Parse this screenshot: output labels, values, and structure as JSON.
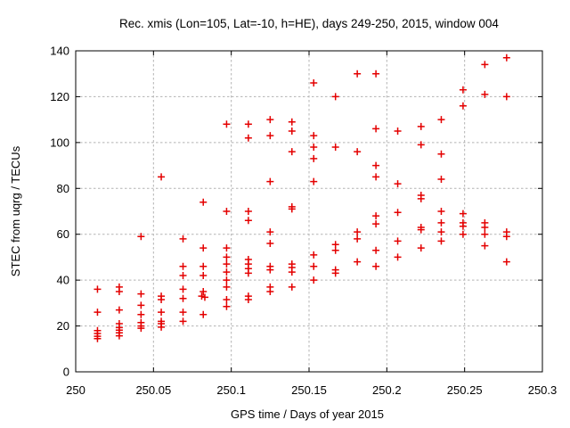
{
  "window": {
    "background": "#ffffff"
  },
  "chart_data": {
    "type": "scatter",
    "title": "Rec. xmis (Lon=105, Lat=-10, h=HE), days 249-250, 2015, window 004",
    "xlabel": "GPS time / Days of year 2015",
    "ylabel": "STEC from uqrg / TECUs",
    "xlim": [
      250,
      250.3
    ],
    "ylim": [
      0,
      140
    ],
    "xticks": {
      "values": [
        250,
        250.05,
        250.1,
        250.15,
        250.2,
        250.25,
        250.3
      ],
      "labels": [
        "250",
        "250.05",
        "250.1",
        "250.15",
        "250.2",
        "250.25",
        "250.3"
      ]
    },
    "yticks": {
      "values": [
        0,
        20,
        40,
        60,
        80,
        100,
        120,
        140
      ],
      "labels": [
        "0",
        "20",
        "40",
        "60",
        "80",
        "100",
        "120",
        "140"
      ]
    },
    "grid": true,
    "legend": "none",
    "marker": "plus",
    "marker_color": "#e40000",
    "grid_color": "#b3b3b3",
    "border_color": "#000000",
    "series": [
      {
        "name": "STEC",
        "points": [
          [
            250.014,
            36
          ],
          [
            250.014,
            26
          ],
          [
            250.014,
            18
          ],
          [
            250.014,
            16.7
          ],
          [
            250.014,
            15.5
          ],
          [
            250.014,
            14.5
          ],
          [
            250.028,
            37
          ],
          [
            250.028,
            35
          ],
          [
            250.028,
            27
          ],
          [
            250.028,
            21
          ],
          [
            250.028,
            19.3
          ],
          [
            250.028,
            18.2
          ],
          [
            250.028,
            17
          ],
          [
            250.028,
            15.7
          ],
          [
            250.042,
            59
          ],
          [
            250.042,
            34
          ],
          [
            250.042,
            29
          ],
          [
            250.042,
            25
          ],
          [
            250.042,
            21.5
          ],
          [
            250.042,
            20
          ],
          [
            250.042,
            19
          ],
          [
            250.055,
            85
          ],
          [
            250.055,
            33
          ],
          [
            250.055,
            31.5
          ],
          [
            250.055,
            26
          ],
          [
            250.055,
            22
          ],
          [
            250.055,
            21
          ],
          [
            250.055,
            19.5
          ],
          [
            250.069,
            58
          ],
          [
            250.069,
            46
          ],
          [
            250.069,
            42
          ],
          [
            250.069,
            36
          ],
          [
            250.069,
            32
          ],
          [
            250.069,
            26
          ],
          [
            250.069,
            22
          ],
          [
            250.082,
            74
          ],
          [
            250.082,
            54
          ],
          [
            250.082,
            46
          ],
          [
            250.082,
            42
          ],
          [
            250.082,
            35
          ],
          [
            250.081,
            33
          ],
          [
            250.083,
            32.5
          ],
          [
            250.082,
            25
          ],
          [
            250.097,
            108
          ],
          [
            250.097,
            70
          ],
          [
            250.097,
            54
          ],
          [
            250.097,
            50
          ],
          [
            250.097,
            47
          ],
          [
            250.097,
            43.5
          ],
          [
            250.097,
            40
          ],
          [
            250.097,
            37
          ],
          [
            250.097,
            31.5
          ],
          [
            250.097,
            28.5
          ],
          [
            250.111,
            108
          ],
          [
            250.111,
            102
          ],
          [
            250.111,
            70
          ],
          [
            250.111,
            66
          ],
          [
            250.111,
            49
          ],
          [
            250.111,
            47
          ],
          [
            250.111,
            45
          ],
          [
            250.111,
            43
          ],
          [
            250.111,
            33
          ],
          [
            250.111,
            31.5
          ],
          [
            250.125,
            110
          ],
          [
            250.125,
            103
          ],
          [
            250.125,
            83
          ],
          [
            250.125,
            61
          ],
          [
            250.125,
            56
          ],
          [
            250.125,
            46
          ],
          [
            250.125,
            44.5
          ],
          [
            250.125,
            37
          ],
          [
            250.125,
            35
          ],
          [
            250.139,
            109
          ],
          [
            250.139,
            105
          ],
          [
            250.139,
            96
          ],
          [
            250.139,
            72
          ],
          [
            250.139,
            71
          ],
          [
            250.139,
            47
          ],
          [
            250.139,
            45.5
          ],
          [
            250.139,
            43.5
          ],
          [
            250.139,
            37
          ],
          [
            250.153,
            126
          ],
          [
            250.153,
            103
          ],
          [
            250.153,
            98
          ],
          [
            250.153,
            93
          ],
          [
            250.153,
            83
          ],
          [
            250.153,
            51
          ],
          [
            250.153,
            46
          ],
          [
            250.153,
            40
          ],
          [
            250.167,
            120
          ],
          [
            250.167,
            98
          ],
          [
            250.167,
            55.5
          ],
          [
            250.167,
            53
          ],
          [
            250.167,
            44.5
          ],
          [
            250.167,
            43
          ],
          [
            250.181,
            130
          ],
          [
            250.181,
            96
          ],
          [
            250.181,
            61
          ],
          [
            250.181,
            58
          ],
          [
            250.181,
            48
          ],
          [
            250.193,
            130
          ],
          [
            250.193,
            106
          ],
          [
            250.193,
            90
          ],
          [
            250.193,
            85
          ],
          [
            250.193,
            68
          ],
          [
            250.193,
            64.5
          ],
          [
            250.193,
            53
          ],
          [
            250.193,
            46
          ],
          [
            250.207,
            105
          ],
          [
            250.207,
            82
          ],
          [
            250.207,
            69.5
          ],
          [
            250.207,
            57
          ],
          [
            250.207,
            50
          ],
          [
            250.222,
            107
          ],
          [
            250.222,
            99
          ],
          [
            250.222,
            77
          ],
          [
            250.222,
            75.5
          ],
          [
            250.222,
            63
          ],
          [
            250.222,
            62
          ],
          [
            250.222,
            54
          ],
          [
            250.235,
            110
          ],
          [
            250.235,
            95
          ],
          [
            250.235,
            84
          ],
          [
            250.235,
            70
          ],
          [
            250.235,
            65
          ],
          [
            250.235,
            61
          ],
          [
            250.235,
            57
          ],
          [
            250.249,
            123
          ],
          [
            250.249,
            116
          ],
          [
            250.249,
            69
          ],
          [
            250.249,
            65
          ],
          [
            250.249,
            63.5
          ],
          [
            250.249,
            60
          ],
          [
            250.263,
            134
          ],
          [
            250.263,
            121
          ],
          [
            250.263,
            65
          ],
          [
            250.263,
            63
          ],
          [
            250.263,
            60
          ],
          [
            250.263,
            55
          ],
          [
            250.277,
            137
          ],
          [
            250.277,
            120
          ],
          [
            250.277,
            61
          ],
          [
            250.277,
            59
          ],
          [
            250.277,
            48
          ]
        ]
      }
    ]
  }
}
